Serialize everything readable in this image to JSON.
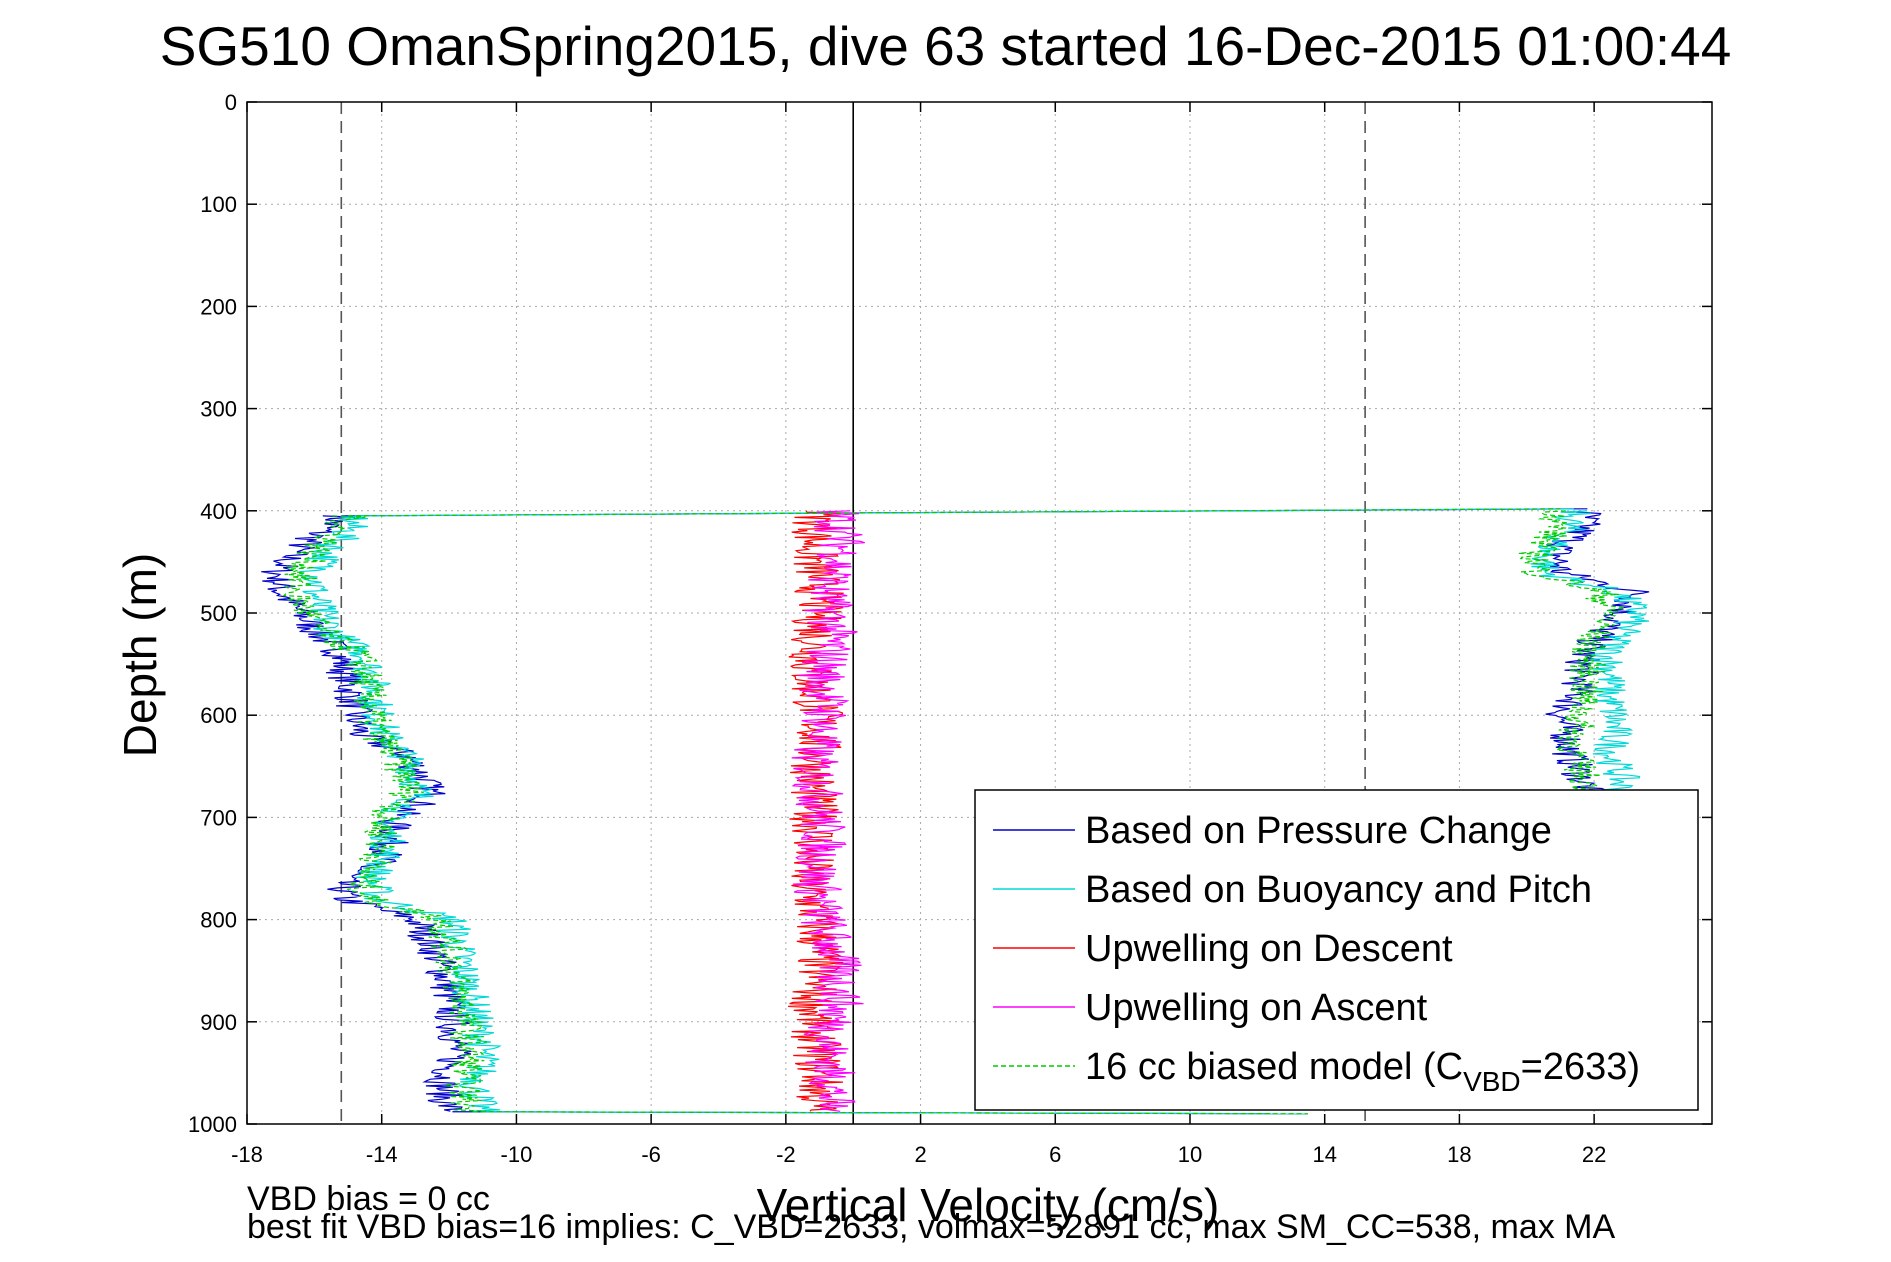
{
  "chart_data": {
    "type": "line",
    "title": "SG510 OmanSpring2015, dive 63 started 16-Dec-2015 01:00:44",
    "xlabel": "Vertical Velocity (cm/s)",
    "ylabel": "Depth (m)",
    "xlim": [
      -18,
      25.5
    ],
    "ylim": [
      0,
      1000
    ],
    "y_reversed": true,
    "grid": true,
    "x_ticks": [
      "-18",
      "-14",
      "-10",
      "-6",
      "-2",
      "2",
      "6",
      "10",
      "14",
      "18",
      "22"
    ],
    "y_ticks": [
      "0",
      "100",
      "200",
      "300",
      "400",
      "500",
      "600",
      "700",
      "800",
      "900",
      "1000"
    ],
    "legend_position": "bottom-right",
    "reference_lines": [
      {
        "style": "dashed",
        "x": -15.2,
        "color": "#555555"
      },
      {
        "style": "dashed",
        "x": 15.2,
        "color": "#555555"
      },
      {
        "style": "solid",
        "x": 0,
        "color": "#000000"
      }
    ],
    "series": [
      {
        "name": "Based on Pressure Change",
        "color": "#0000cc",
        "style": "solid",
        "profile": [
          {
            "side": -1,
            "depth": [
              405,
              420,
              440,
              460,
              480,
              500,
              520,
              540,
              560,
              580,
              600,
              620,
              640,
              660,
              680,
              700,
              720,
              740,
              760,
              780,
              800,
              820,
              840,
              860,
              880,
              900,
              920,
              940,
              960,
              980,
              988
            ],
            "v": [
              -15.2,
              -15.8,
              -16.6,
              -17.1,
              -17.0,
              -16.4,
              -15.9,
              -15.2,
              -15.1,
              -14.9,
              -14.8,
              -14.6,
              -13.2,
              -12.8,
              -12.5,
              -13.6,
              -13.7,
              -13.9,
              -15.2,
              -15.1,
              -13.0,
              -12.6,
              -12.3,
              -12.1,
              -12.0,
              -11.9,
              -11.8,
              -11.9,
              -12.2,
              -12.1,
              -11.9
            ]
          },
          {
            "side": 1,
            "depth": [
              400,
              420,
              440,
              460,
              480,
              500,
              520,
              540,
              560,
              580,
              600,
              620,
              640,
              660,
              675
            ],
            "v": [
              21.8,
              21.6,
              20.9,
              21.0,
              23.3,
              22.8,
              22.2,
              21.7,
              21.6,
              21.5,
              21.0,
              21.2,
              21.3,
              21.6,
              21.8
            ]
          }
        ]
      },
      {
        "name": "Based on Buoyancy and Pitch",
        "color": "#00d8d8",
        "style": "solid",
        "profile": [
          {
            "side": -1,
            "depth": [
              405,
              420,
              440,
              460,
              480,
              500,
              520,
              540,
              560,
              580,
              600,
              620,
              640,
              660,
              680,
              700,
              720,
              740,
              760,
              780,
              800,
              820,
              840,
              860,
              880,
              900,
              920,
              940,
              960,
              980,
              988
            ],
            "v": [
              -14.8,
              -15.0,
              -15.6,
              -15.9,
              -16.0,
              -15.8,
              -15.4,
              -14.5,
              -14.3,
              -14.2,
              -14.1,
              -13.9,
              -13.3,
              -13.0,
              -12.9,
              -13.8,
              -13.8,
              -13.9,
              -14.3,
              -14.1,
              -11.9,
              -11.8,
              -11.6,
              -11.5,
              -11.3,
              -11.2,
              -11.0,
              -11.0,
              -11.2,
              -11.1,
              -11.0
            ]
          },
          {
            "side": 1,
            "depth": [
              400,
              420,
              440,
              460,
              480,
              500,
              520,
              540,
              560,
              580,
              600,
              620,
              640,
              660,
              675
            ],
            "v": [
              21.4,
              21.2,
              20.6,
              20.5,
              22.7,
              23.3,
              22.8,
              22.4,
              22.5,
              22.4,
              22.6,
              22.6,
              22.5,
              22.8,
              22.8
            ]
          }
        ]
      },
      {
        "name": "Upwelling on Descent",
        "color": "#ff0000",
        "style": "solid",
        "profile": [
          {
            "side": 0,
            "depth": [
              400,
              440,
              480,
              520,
              560,
              600,
              640,
              680,
              720,
              760,
              800,
              840,
              880,
              920,
              960,
              988
            ],
            "v": [
              -1.0,
              -1.2,
              -1.0,
              -1.1,
              -1.3,
              -1.0,
              -1.1,
              -1.2,
              -1.1,
              -1.4,
              -1.1,
              -1.0,
              -1.2,
              -1.1,
              -1.0,
              -1.1
            ]
          }
        ]
      },
      {
        "name": "Upwelling on Ascent",
        "color": "#ff00ff",
        "style": "solid",
        "profile": [
          {
            "side": 0,
            "depth": [
              400,
              440,
              480,
              520,
              560,
              600,
              640,
              680,
              720,
              760,
              800,
              840,
              880,
              920,
              960,
              988
            ],
            "v": [
              -0.5,
              -0.3,
              -0.8,
              -0.6,
              -0.9,
              -0.8,
              -1.2,
              -1.0,
              -0.9,
              -1.1,
              -0.9,
              -0.5,
              -0.4,
              -0.8,
              -0.6,
              -0.7
            ]
          }
        ]
      },
      {
        "name": "16 cc biased model (C_VBD=2633)",
        "color": "#00cc00",
        "style": "dashed",
        "profile": [
          {
            "side": -1,
            "depth": [
              405,
              420,
              440,
              460,
              480,
              500,
              520,
              540,
              560,
              580,
              600,
              620,
              640,
              660,
              680,
              700,
              720,
              740,
              760,
              780,
              800,
              820,
              840,
              860,
              880,
              900,
              920,
              940,
              960,
              980,
              988
            ],
            "v": [
              -15.0,
              -15.3,
              -16.0,
              -16.4,
              -16.6,
              -16.2,
              -15.7,
              -14.7,
              -14.5,
              -14.4,
              -14.3,
              -14.1,
              -13.6,
              -13.3,
              -13.2,
              -14.0,
              -14.0,
              -14.1,
              -14.6,
              -14.4,
              -12.2,
              -12.1,
              -11.9,
              -11.8,
              -11.6,
              -11.5,
              -11.4,
              -11.4,
              -11.6,
              -11.5,
              -11.3
            ]
          },
          {
            "side": 1,
            "depth": [
              400,
              420,
              440,
              460,
              480,
              500,
              520,
              540,
              560,
              580,
              600,
              620,
              640,
              660,
              675
            ],
            "v": [
              21.0,
              20.8,
              20.3,
              20.3,
              22.2,
              22.5,
              22.0,
              21.8,
              21.8,
              21.7,
              21.6,
              21.4,
              21.4,
              21.7,
              21.9
            ]
          }
        ]
      }
    ],
    "legend_entries": [
      {
        "label": "Based on Pressure Change",
        "color": "#0000cc",
        "style": "solid"
      },
      {
        "label": "Based on Buoyancy and Pitch",
        "color": "#00d8d8",
        "style": "solid"
      },
      {
        "label": "Upwelling on Descent",
        "color": "#ff0000",
        "style": "solid"
      },
      {
        "label": "Upwelling on Ascent",
        "color": "#ff00ff",
        "style": "solid"
      },
      {
        "label_main": "16 cc biased model (C",
        "label_sub": "VBD",
        "label_tail": "=2633)",
        "color": "#00cc00",
        "style": "dashed"
      }
    ]
  },
  "notes": {
    "line1": "VBD bias = 0 cc",
    "line2": "best fit VBD bias=16 implies: C_VBD=2633, volmax=52891 cc, max SM_CC=538, max MA"
  }
}
